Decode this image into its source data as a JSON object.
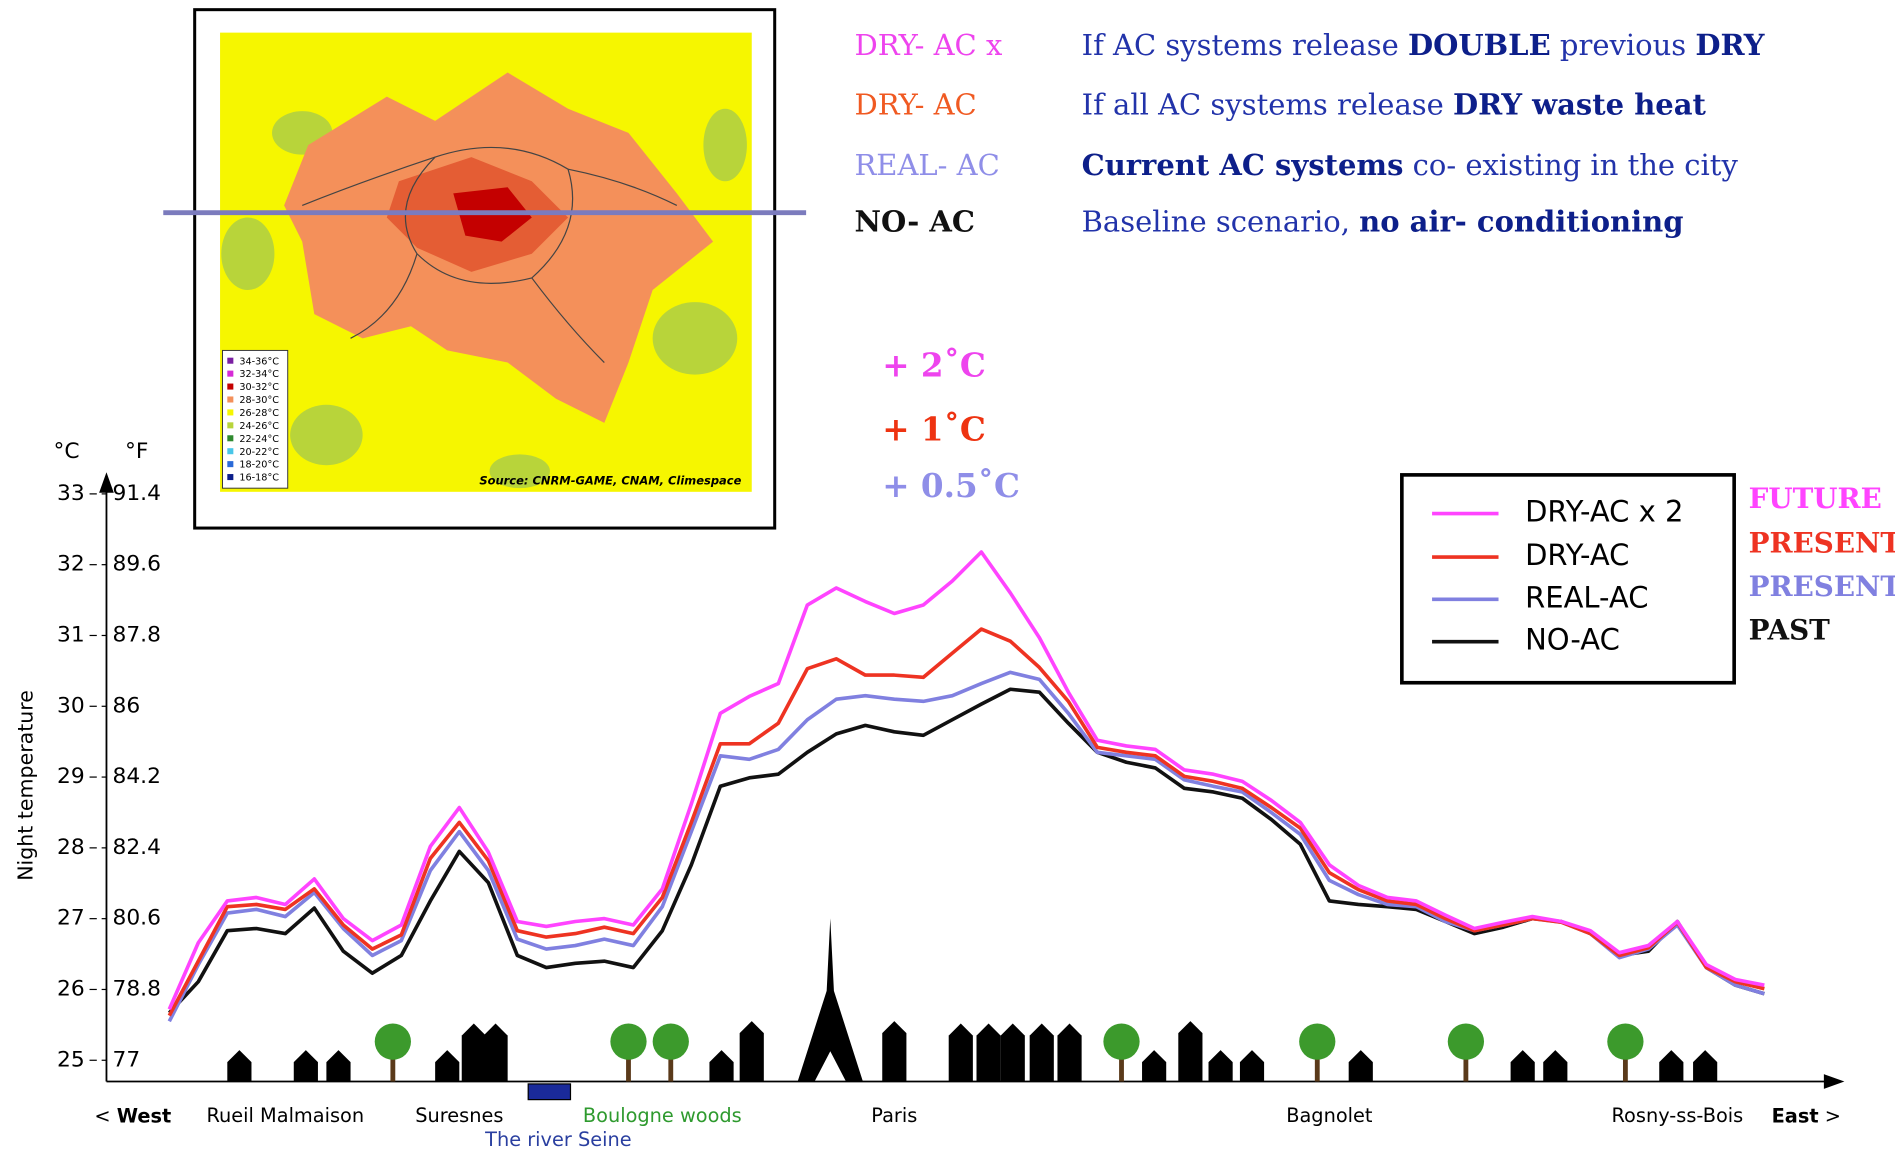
{
  "map": {
    "legend": [
      {
        "label": "34-36°C",
        "color": "#7a1fa2"
      },
      {
        "label": "32-34°C",
        "color": "#d62ad6"
      },
      {
        "label": "30-32°C",
        "color": "#c40000"
      },
      {
        "label": "28-30°C",
        "color": "#f4905a"
      },
      {
        "label": "26-28°C",
        "color": "#f6f600"
      },
      {
        "label": "24-26°C",
        "color": "#b8d43a"
      },
      {
        "label": "22-24°C",
        "color": "#2f8a2f"
      },
      {
        "label": "20-22°C",
        "color": "#49c6e8"
      },
      {
        "label": "18-20°C",
        "color": "#2a6ad8"
      },
      {
        "label": "16-18°C",
        "color": "#0b1e8a"
      }
    ],
    "source": "Source: CNRM-GAME, CNAM, Climespace"
  },
  "scenarios": [
    {
      "name": "DRY- AC x",
      "color": "#ee44ee",
      "description": [
        {
          "text": "If AC systems release "
        },
        {
          "text": "DOUBLE",
          "bold": true
        },
        {
          "text": " previous "
        },
        {
          "text": "DRY",
          "bold": true
        }
      ]
    },
    {
      "name": "DRY- AC",
      "color": "#f05a22",
      "description": [
        {
          "text": "If all AC systems release "
        },
        {
          "text": "DRY waste heat",
          "bold": true
        }
      ]
    },
    {
      "name": "REAL- AC",
      "color": "#8f8ee8",
      "description": [
        {
          "text": "Current AC systems",
          "bold": true
        },
        {
          "text": " co- existing in the city"
        }
      ]
    },
    {
      "name": "NO- AC",
      "color": "#111111",
      "description": [
        {
          "text": "Baseline scenario, "
        },
        {
          "text": "no air- conditioning",
          "bold": true
        }
      ]
    }
  ],
  "chart_data": {
    "type": "line",
    "y_label": "Night temperature",
    "y_unit": "°C",
    "y2_unit": "°F",
    "ylim": [
      24.7,
      33.2
    ],
    "yticks": [
      25,
      26,
      27,
      28,
      29,
      30,
      31,
      32,
      33
    ],
    "y2lim": [
      76.46,
      91.76
    ],
    "y2ticks": [
      77,
      78.8,
      80.6,
      82.4,
      84.2,
      86,
      87.8,
      89.6,
      91.4
    ],
    "categories": [
      null,
      null,
      null,
      null,
      "Rueil Malmaison",
      null,
      null,
      null,
      null,
      null,
      "Suresnes",
      null,
      null,
      null,
      null,
      null,
      null,
      "Boulogne woods",
      null,
      null,
      null,
      null,
      null,
      null,
      null,
      "Paris",
      null,
      null,
      null,
      null,
      null,
      null,
      null,
      null,
      null,
      null,
      null,
      null,
      null,
      null,
      "Bagnolet",
      null,
      null,
      null,
      null,
      null,
      null,
      null,
      null,
      null,
      null,
      null,
      "Rosny-ss-Bois",
      null,
      null,
      null
    ],
    "category_colors": {
      "Boulogne woods": "#2e9a2e"
    },
    "annotations": [
      {
        "text": "The river Seine",
        "color": "#2a3fa0"
      }
    ],
    "west": [
      {
        "text": "< "
      },
      {
        "text": "West",
        "bold": true
      }
    ],
    "east": [
      {
        "text": "East",
        "bold": true
      },
      {
        "text": " >"
      }
    ],
    "deltas": [
      {
        "label": "+ 2˚C",
        "color": "#ee44ee"
      },
      {
        "label": "+ 1˚C",
        "color": "#ee3311"
      },
      {
        "label": "+ 0.5˚C",
        "color": "#8f8ee8"
      }
    ],
    "series": [
      {
        "name": "DRY-AC x 2",
        "era": "FUTURE",
        "color": "#ff44ff",
        "values": [
          25.72,
          26.66,
          27.25,
          27.3,
          27.2,
          27.56,
          27.0,
          26.69,
          26.91,
          28.02,
          28.57,
          27.94,
          26.96,
          26.89,
          26.96,
          27.0,
          26.91,
          27.42,
          28.62,
          29.9,
          30.14,
          30.32,
          31.43,
          31.67,
          31.48,
          31.31,
          31.43,
          31.77,
          32.18,
          31.6,
          30.97,
          30.2,
          29.52,
          29.44,
          29.39,
          29.1,
          29.04,
          28.94,
          28.67,
          28.36,
          27.76,
          27.47,
          27.3,
          27.25,
          27.05,
          26.86,
          26.95,
          27.03,
          26.96,
          26.83,
          26.52,
          26.62,
          26.96,
          26.35,
          26.14,
          26.06
        ]
      },
      {
        "name": "DRY-AC",
        "era": "PRESENT",
        "color": "#ee3322",
        "values": [
          25.63,
          26.4,
          27.17,
          27.2,
          27.13,
          27.42,
          26.91,
          26.57,
          26.77,
          27.85,
          28.36,
          27.82,
          26.83,
          26.74,
          26.79,
          26.88,
          26.79,
          27.3,
          28.36,
          29.47,
          29.47,
          29.76,
          30.53,
          30.67,
          30.44,
          30.44,
          30.41,
          30.75,
          31.09,
          30.92,
          30.55,
          30.07,
          29.42,
          29.35,
          29.3,
          29.01,
          28.94,
          28.84,
          28.57,
          28.28,
          27.65,
          27.41,
          27.25,
          27.2,
          27.0,
          26.83,
          26.91,
          27.0,
          26.95,
          26.79,
          26.48,
          26.59,
          26.95,
          26.31,
          26.11,
          26.01
        ]
      },
      {
        "name": "REAL-AC",
        "era": "PRESENT",
        "color": "#8080e0",
        "values": [
          25.55,
          26.35,
          27.08,
          27.13,
          27.03,
          27.37,
          26.86,
          26.48,
          26.69,
          27.68,
          28.23,
          27.68,
          26.71,
          26.57,
          26.62,
          26.71,
          26.62,
          27.17,
          28.23,
          29.3,
          29.25,
          29.39,
          29.81,
          30.1,
          30.15,
          30.1,
          30.07,
          30.15,
          30.32,
          30.48,
          30.38,
          29.9,
          29.35,
          29.3,
          29.25,
          28.96,
          28.87,
          28.79,
          28.5,
          28.19,
          27.54,
          27.34,
          27.2,
          27.17,
          26.96,
          26.83,
          26.91,
          27.0,
          26.95,
          26.79,
          26.45,
          26.57,
          26.91,
          26.31,
          26.06,
          25.94
        ]
      },
      {
        "name": "NO-AC",
        "era": "PAST",
        "color": "#111111",
        "values": [
          25.67,
          26.11,
          26.83,
          26.86,
          26.79,
          27.15,
          26.54,
          26.23,
          26.48,
          27.25,
          27.95,
          27.51,
          26.48,
          26.31,
          26.37,
          26.4,
          26.31,
          26.83,
          27.76,
          28.87,
          28.99,
          29.04,
          29.35,
          29.61,
          29.73,
          29.64,
          29.59,
          29.81,
          30.03,
          30.24,
          30.2,
          29.76,
          29.35,
          29.21,
          29.13,
          28.84,
          28.79,
          28.7,
          28.4,
          28.05,
          27.25,
          27.2,
          27.17,
          27.13,
          26.96,
          26.79,
          26.88,
          27.0,
          26.96,
          26.79,
          26.48,
          26.54,
          26.96,
          26.31,
          26.06,
          25.94
        ]
      }
    ]
  }
}
